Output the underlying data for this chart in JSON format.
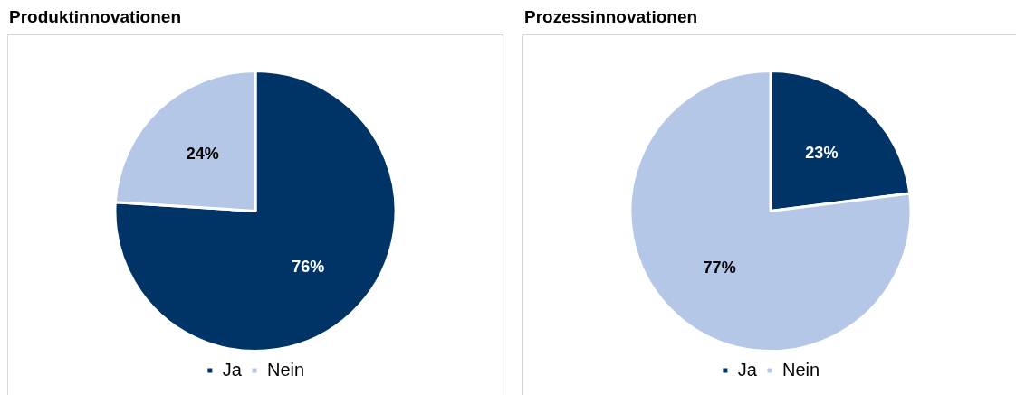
{
  "chart_data": [
    {
      "type": "pie",
      "title": "Produktinnovationen",
      "categories": [
        "Ja",
        "Nein"
      ],
      "values": [
        76,
        24
      ],
      "colors": [
        "#003366",
        "#b4c7e7"
      ],
      "value_labels": [
        "76%",
        "24%"
      ],
      "legend": "bottom"
    },
    {
      "type": "pie",
      "title": "Prozessinnovationen",
      "categories": [
        "Ja",
        "Nein"
      ],
      "values": [
        23,
        77
      ],
      "colors": [
        "#003366",
        "#b4c7e7"
      ],
      "value_labels": [
        "23%",
        "77%"
      ],
      "legend": "bottom"
    }
  ]
}
